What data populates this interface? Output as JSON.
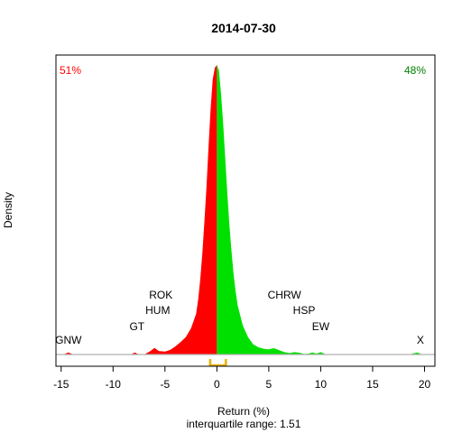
{
  "chart_data": {
    "type": "area",
    "title": "2014-07-30",
    "xlabel": "Return (%)",
    "ylabel": "Density",
    "subtitle": "interquartile range: 1.51",
    "xlim": [
      -15.5,
      21
    ],
    "x_ticks": [
      -15,
      -10,
      -5,
      0,
      5,
      10,
      15,
      20
    ],
    "ylim": [
      0,
      1
    ],
    "grid": false,
    "left_share_label": "51%",
    "right_share_label": "48%",
    "split_x": 0,
    "colors": {
      "negative": "#ff0000",
      "positive": "#00e000",
      "left_text": "#ff0000",
      "right_text": "#008000",
      "iqr": "#e8b000",
      "baseline": "#b0b0b0"
    },
    "interquartile": [
      -0.65,
      0.86
    ],
    "density": {
      "x": [
        -15.5,
        -14.8,
        -14.3,
        -13.8,
        -12,
        -8.3,
        -7.9,
        -7.5,
        -7,
        -6.4,
        -6,
        -5.6,
        -5,
        -4.5,
        -4,
        -3.5,
        -3,
        -2.5,
        -2,
        -1.8,
        -1.6,
        -1.4,
        -1.2,
        -1,
        -0.8,
        -0.6,
        -0.4,
        -0.2,
        0,
        0.2,
        0.4,
        0.6,
        0.8,
        1,
        1.2,
        1.4,
        1.6,
        1.8,
        2,
        2.5,
        3,
        3.5,
        4,
        4.5,
        5,
        5.5,
        6,
        6.5,
        7,
        7.5,
        8,
        8.4,
        8.8,
        9.2,
        9.6,
        10,
        10.4,
        11,
        15,
        18.5,
        19.3,
        19.8,
        20.5,
        21
      ],
      "y": [
        0,
        0,
        0.007,
        0,
        0,
        0,
        0.007,
        0,
        0,
        0.012,
        0.023,
        0.012,
        0.01,
        0.016,
        0.028,
        0.043,
        0.06,
        0.09,
        0.14,
        0.19,
        0.26,
        0.35,
        0.46,
        0.58,
        0.72,
        0.85,
        0.95,
        0.99,
        1.0,
        0.98,
        0.9,
        0.8,
        0.68,
        0.56,
        0.45,
        0.36,
        0.28,
        0.22,
        0.17,
        0.1,
        0.06,
        0.035,
        0.025,
        0.02,
        0.018,
        0.022,
        0.015,
        0.008,
        0.005,
        0.008,
        0.006,
        0.002,
        0.003,
        0.007,
        0.003,
        0.008,
        0.002,
        0,
        0,
        0,
        0.007,
        0,
        0,
        0
      ]
    },
    "annotations": [
      {
        "label": "GNW",
        "x": -14.3,
        "row": 0
      },
      {
        "label": "GT",
        "x": -7.7,
        "row": 1
      },
      {
        "label": "HUM",
        "x": -5.7,
        "row": 2
      },
      {
        "label": "ROK",
        "x": -5.4,
        "row": 3
      },
      {
        "label": "CHRW",
        "x": 6.5,
        "row": 3
      },
      {
        "label": "HSP",
        "x": 8.4,
        "row": 2
      },
      {
        "label": "EW",
        "x": 10,
        "row": 1
      },
      {
        "label": "X",
        "x": 19.6,
        "row": 0
      }
    ]
  }
}
